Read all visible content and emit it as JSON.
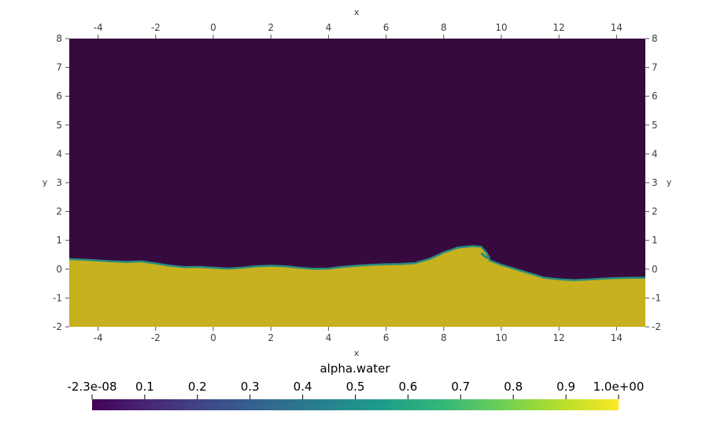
{
  "chart_data": {
    "type": "heatmap",
    "title": "",
    "xlabel": "x",
    "ylabel": "y",
    "xlim": [
      -5,
      15
    ],
    "ylim": [
      -2,
      8
    ],
    "x_ticks": [
      "-4",
      "-2",
      "0",
      "2",
      "4",
      "6",
      "8",
      "10",
      "12",
      "14"
    ],
    "y_ticks": [
      "-2",
      "-1",
      "0",
      "1",
      "2",
      "3",
      "4",
      "5",
      "6",
      "7",
      "8"
    ],
    "field": "alpha.water",
    "value_range": [
      -2.3e-08,
      1.0
    ],
    "colors": {
      "air": "#360a3f",
      "water": "#c8b11e",
      "interface": "#2a8c80"
    },
    "free_surface": {
      "x": [
        -5.0,
        -4.5,
        -4.0,
        -3.5,
        -3.0,
        -2.5,
        -2.0,
        -1.5,
        -1.0,
        -0.5,
        0.0,
        0.5,
        1.0,
        1.5,
        2.0,
        2.5,
        3.0,
        3.5,
        4.0,
        4.5,
        5.0,
        5.5,
        6.0,
        6.5,
        7.0,
        7.5,
        8.0,
        8.5,
        9.0,
        9.3,
        9.5,
        9.6,
        10.0,
        10.5,
        11.0,
        11.5,
        12.0,
        12.5,
        13.0,
        13.5,
        14.0,
        14.5,
        15.0
      ],
      "y": [
        0.35,
        0.33,
        0.3,
        0.27,
        0.25,
        0.27,
        0.2,
        0.12,
        0.07,
        0.08,
        0.05,
        0.02,
        0.05,
        0.1,
        0.12,
        0.1,
        0.05,
        0.01,
        0.02,
        0.08,
        0.12,
        0.15,
        0.17,
        0.18,
        0.21,
        0.35,
        0.58,
        0.75,
        0.8,
        0.78,
        0.55,
        0.3,
        0.15,
        0.0,
        -0.15,
        -0.3,
        -0.35,
        -0.38,
        -0.36,
        -0.33,
        -0.31,
        -0.3,
        -0.3
      ]
    },
    "breaking_tip": {
      "x": [
        9.3,
        9.5,
        9.6
      ],
      "y": [
        0.55,
        0.4,
        0.45
      ]
    },
    "colorbar": {
      "title": "alpha.water",
      "tick_labels": [
        "-2.3e-08",
        "0.1",
        "0.2",
        "0.3",
        "0.4",
        "0.5",
        "0.6",
        "0.7",
        "0.8",
        "0.9",
        "1.0e+00"
      ],
      "tick_values": [
        0,
        0.1,
        0.2,
        0.3,
        0.4,
        0.5,
        0.6,
        0.7,
        0.8,
        0.9,
        1.0
      ],
      "gradient": [
        "#440154",
        "#482878",
        "#3e4a89",
        "#31688e",
        "#26828e",
        "#1f9e89",
        "#35b779",
        "#6ece58",
        "#b5de2b",
        "#fde725"
      ]
    }
  }
}
